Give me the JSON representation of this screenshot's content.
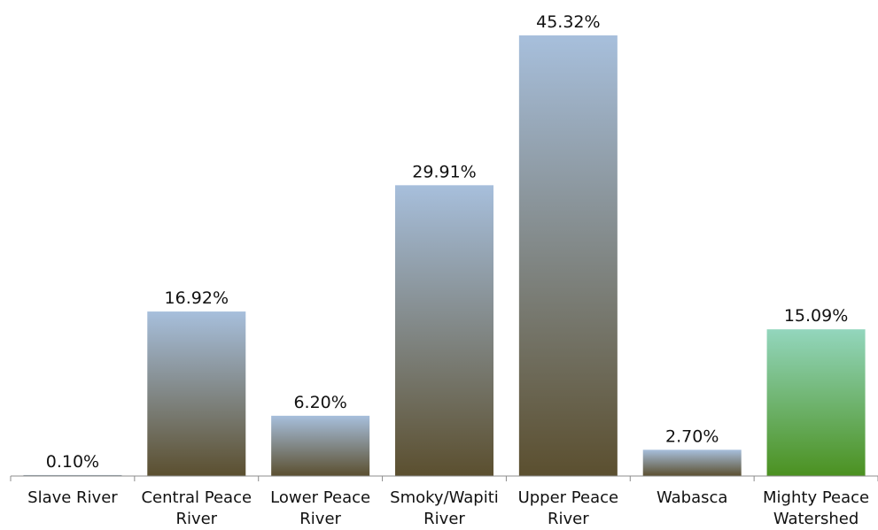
{
  "chart_data": {
    "type": "bar",
    "categories": [
      "Slave River",
      "Central Peace River",
      "Lower Peace River",
      "Smoky/Wapiti River",
      "Upper Peace River",
      "Wabasca",
      "Mighty Peace Watershed"
    ],
    "values": [
      0.1,
      16.92,
      6.2,
      29.91,
      45.32,
      2.7,
      15.09
    ],
    "value_labels": [
      "0.10%",
      "16.92%",
      "6.20%",
      "29.91%",
      "45.32%",
      "2.70%",
      "15.09%"
    ],
    "colors": [
      {
        "top": "#a7bfdc",
        "bottom": "#5b4f2f"
      },
      {
        "top": "#a7bfdc",
        "bottom": "#5b4f2f"
      },
      {
        "top": "#a7bfdc",
        "bottom": "#5b4f2f"
      },
      {
        "top": "#a7bfdc",
        "bottom": "#5b4f2f"
      },
      {
        "top": "#a7bfdc",
        "bottom": "#5b4f2f"
      },
      {
        "top": "#a7bfdc",
        "bottom": "#5b4f2f"
      },
      {
        "top": "#93d6bd",
        "bottom": "#4b9120"
      }
    ]
  }
}
